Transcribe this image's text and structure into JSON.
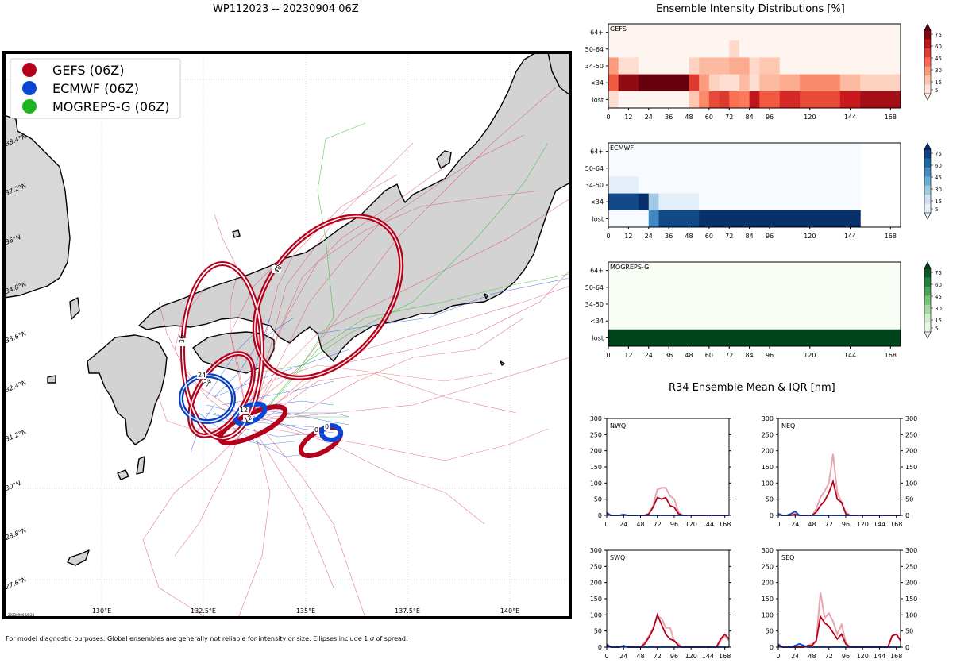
{
  "titles": {
    "map": "WP112023 -- 20230904 06Z",
    "intensity": "Ensemble Intensity Distributions [%]",
    "r34": "R34 Ensemble Mean & IQR [nm]"
  },
  "footnote_before": "For model diagnostic purposes. Global ensembles are generally not reliable for intensity or size. Ellipses include 1 ",
  "footnote_sigma": "σ",
  "footnote_after": " of spread.",
  "stamp": "20230906 16:24",
  "colors": {
    "gefs": "#b5001c",
    "ecmwf": "#0a46d6",
    "mogreps": "#1db522",
    "land": "#d3d3d3",
    "coast": "#000000"
  },
  "map": {
    "legend": [
      {
        "label": "GEFS (06Z)",
        "color": "#b5001c"
      },
      {
        "label": "ECMWF (06Z)",
        "color": "#0a46d6"
      },
      {
        "label": "MOGREPS-G (06Z)",
        "color": "#1db522"
      }
    ],
    "lon_labels": [
      "130°E",
      "132.5°E",
      "135°E",
      "137.5°E",
      "140°E"
    ],
    "lat_labels": [
      "38.4°N",
      "37.2°N",
      "36°N",
      "34.8°N",
      "33.6°N",
      "32.4°N",
      "31.2°N",
      "30°N",
      "28.8°N",
      "27.6°N"
    ],
    "ellipse_labels": {
      "gefs_36": "36",
      "gefs_48": "48",
      "gefs_24": "24",
      "gefs_12": "12",
      "gefs_0": "0",
      "ecmwf_24": "24",
      "ecmwf_12": "12",
      "ecmwf_0": "0"
    }
  },
  "chart_data": [
    {
      "type": "heatmap",
      "title": "GEFS",
      "colormap": "Reds",
      "x_ticks": [
        0,
        12,
        24,
        36,
        48,
        60,
        72,
        84,
        96,
        120,
        144,
        168
      ],
      "y_labels": [
        "64+",
        "50-64",
        "34-50",
        "<34",
        "lost"
      ],
      "colorbar_ticks": [
        5,
        15,
        30,
        45,
        60,
        75
      ],
      "columns": [
        {
          "start": 0,
          "end": 6,
          "values": [
            0,
            0,
            35,
            55,
            10
          ]
        },
        {
          "start": 6,
          "end": 18,
          "values": [
            0,
            0,
            10,
            90,
            0
          ]
        },
        {
          "start": 18,
          "end": 48,
          "values": [
            0,
            0,
            0,
            100,
            0
          ]
        },
        {
          "start": 48,
          "end": 54,
          "values": [
            0,
            0,
            15,
            65,
            20
          ]
        },
        {
          "start": 54,
          "end": 60,
          "values": [
            0,
            0,
            25,
            35,
            40
          ]
        },
        {
          "start": 60,
          "end": 66,
          "values": [
            0,
            0,
            25,
            15,
            60
          ]
        },
        {
          "start": 66,
          "end": 72,
          "values": [
            0,
            0,
            25,
            10,
            65
          ]
        },
        {
          "start": 72,
          "end": 78,
          "values": [
            0,
            12,
            30,
            10,
            48
          ]
        },
        {
          "start": 78,
          "end": 84,
          "values": [
            0,
            0,
            30,
            25,
            45
          ]
        },
        {
          "start": 84,
          "end": 90,
          "values": [
            0,
            0,
            12,
            10,
            78
          ]
        },
        {
          "start": 90,
          "end": 102,
          "values": [
            0,
            0,
            20,
            25,
            55
          ]
        },
        {
          "start": 102,
          "end": 114,
          "values": [
            0,
            0,
            0,
            30,
            70
          ]
        },
        {
          "start": 114,
          "end": 138,
          "values": [
            0,
            0,
            0,
            40,
            60
          ]
        },
        {
          "start": 138,
          "end": 150,
          "values": [
            0,
            0,
            0,
            25,
            75
          ]
        },
        {
          "start": 150,
          "end": 174,
          "values": [
            0,
            0,
            0,
            15,
            85
          ]
        }
      ]
    },
    {
      "type": "heatmap",
      "title": "ECMWF",
      "colormap": "Blues",
      "x_ticks": [
        0,
        12,
        24,
        36,
        48,
        60,
        72,
        84,
        96,
        120,
        144,
        168
      ],
      "y_labels": [
        "64+",
        "50-64",
        "34-50",
        "<34",
        "lost"
      ],
      "colorbar_ticks": [
        5,
        15,
        30,
        45,
        60,
        75
      ],
      "columns": [
        {
          "start": 0,
          "end": 18,
          "values": [
            0,
            0,
            10,
            90,
            0
          ]
        },
        {
          "start": 18,
          "end": 24,
          "values": [
            0,
            0,
            0,
            100,
            0
          ]
        },
        {
          "start": 24,
          "end": 30,
          "values": [
            0,
            0,
            0,
            35,
            65
          ]
        },
        {
          "start": 30,
          "end": 54,
          "values": [
            0,
            0,
            0,
            10,
            90
          ]
        },
        {
          "start": 54,
          "end": 150,
          "values": [
            0,
            0,
            0,
            0,
            100
          ]
        }
      ]
    },
    {
      "type": "heatmap",
      "title": "MOGREPS-G",
      "colormap": "Greens",
      "x_ticks": [
        0,
        12,
        24,
        36,
        48,
        60,
        72,
        84,
        96,
        120,
        144,
        168
      ],
      "y_labels": [
        "64+",
        "50-64",
        "34-50",
        "<34",
        "lost"
      ],
      "colorbar_ticks": [
        5,
        15,
        30,
        45,
        60,
        75
      ],
      "columns": [
        {
          "start": 0,
          "end": 174,
          "values": [
            0,
            0,
            0,
            0,
            100
          ]
        }
      ]
    },
    {
      "type": "line",
      "title": "NWQ",
      "x": [
        0,
        6,
        12,
        18,
        24,
        30,
        36,
        42,
        48,
        54,
        60,
        66,
        72,
        78,
        84,
        90,
        96,
        102,
        108,
        114,
        120,
        126,
        132,
        138,
        144,
        150,
        156,
        162,
        168,
        174
      ],
      "ylim": [
        0,
        300
      ],
      "y_ticks": [
        0,
        50,
        100,
        150,
        200,
        250,
        300
      ],
      "x_ticks": [
        0,
        24,
        48,
        72,
        96,
        120,
        144,
        168
      ],
      "series": [
        {
          "name": "GEFS IQR",
          "color": "#e8a4b0",
          "values": [
            5,
            0,
            0,
            0,
            0,
            0,
            0,
            0,
            0,
            0,
            5,
            30,
            80,
            85,
            85,
            60,
            50,
            10,
            0,
            0,
            0,
            0,
            0,
            0,
            0,
            0,
            0,
            0,
            0,
            0
          ]
        },
        {
          "name": "GEFS mean",
          "color": "#b5001c",
          "values": [
            3,
            0,
            0,
            0,
            2,
            0,
            0,
            0,
            0,
            0,
            5,
            25,
            55,
            50,
            55,
            30,
            25,
            5,
            0,
            0,
            0,
            0,
            0,
            0,
            0,
            0,
            0,
            0,
            0,
            0
          ]
        },
        {
          "name": "ECMWF mean",
          "color": "#0a46d6",
          "values": [
            8,
            0,
            0,
            0,
            3,
            0,
            0,
            0,
            0,
            0,
            0,
            0,
            0,
            0,
            0,
            0,
            0,
            0,
            0,
            0,
            0,
            0,
            0,
            0,
            0,
            0,
            0,
            0,
            0,
            0
          ]
        }
      ]
    },
    {
      "type": "line",
      "title": "NEQ",
      "x": [
        0,
        6,
        12,
        18,
        24,
        30,
        36,
        42,
        48,
        54,
        60,
        66,
        72,
        78,
        84,
        90,
        96,
        102,
        108,
        114,
        120,
        126,
        132,
        138,
        144,
        150,
        156,
        162,
        168,
        174
      ],
      "ylim": [
        0,
        300
      ],
      "y_ticks": [
        0,
        50,
        100,
        150,
        200,
        250,
        300
      ],
      "x_ticks": [
        0,
        24,
        48,
        72,
        96,
        120,
        144,
        168
      ],
      "series": [
        {
          "name": "GEFS IQR",
          "color": "#e8a4b0",
          "values": [
            5,
            0,
            0,
            0,
            5,
            0,
            0,
            0,
            0,
            20,
            55,
            75,
            100,
            190,
            70,
            40,
            10,
            0,
            0,
            0,
            0,
            0,
            0,
            0,
            0,
            0,
            0,
            0,
            0,
            0
          ]
        },
        {
          "name": "GEFS mean",
          "color": "#b5001c",
          "values": [
            3,
            0,
            0,
            0,
            3,
            0,
            0,
            0,
            0,
            10,
            30,
            45,
            70,
            105,
            50,
            40,
            5,
            0,
            0,
            0,
            0,
            0,
            0,
            0,
            0,
            0,
            0,
            0,
            0,
            0
          ]
        },
        {
          "name": "ECMWF mean",
          "color": "#0a46d6",
          "values": [
            5,
            0,
            0,
            5,
            12,
            0,
            0,
            0,
            0,
            0,
            0,
            0,
            0,
            0,
            0,
            0,
            0,
            0,
            0,
            0,
            0,
            0,
            0,
            0,
            0,
            0,
            0,
            0,
            0,
            0
          ]
        }
      ]
    },
    {
      "type": "line",
      "title": "SWQ",
      "x": [
        0,
        6,
        12,
        18,
        24,
        30,
        36,
        42,
        48,
        54,
        60,
        66,
        72,
        78,
        84,
        90,
        96,
        102,
        108,
        114,
        120,
        126,
        132,
        138,
        144,
        150,
        156,
        162,
        168,
        174
      ],
      "ylim": [
        0,
        300
      ],
      "y_ticks": [
        0,
        50,
        100,
        150,
        200,
        250,
        300
      ],
      "x_ticks": [
        0,
        24,
        48,
        72,
        96,
        120,
        144,
        168
      ],
      "series": [
        {
          "name": "GEFS IQR",
          "color": "#e8a4b0",
          "values": [
            10,
            0,
            0,
            0,
            5,
            0,
            0,
            0,
            0,
            15,
            35,
            60,
            95,
            90,
            60,
            60,
            20,
            10,
            0,
            0,
            0,
            0,
            0,
            0,
            0,
            0,
            0,
            20,
            35,
            20
          ]
        },
        {
          "name": "GEFS mean",
          "color": "#b5001c",
          "values": [
            8,
            0,
            0,
            0,
            3,
            0,
            0,
            0,
            0,
            10,
            30,
            55,
            100,
            70,
            40,
            25,
            20,
            5,
            0,
            0,
            0,
            0,
            0,
            0,
            0,
            0,
            0,
            25,
            40,
            25
          ]
        },
        {
          "name": "ECMWF mean",
          "color": "#0a46d6",
          "values": [
            5,
            0,
            0,
            0,
            5,
            0,
            0,
            0,
            0,
            0,
            0,
            0,
            0,
            0,
            0,
            0,
            0,
            0,
            0,
            0,
            0,
            0,
            0,
            0,
            0,
            0,
            0,
            0,
            0,
            0
          ]
        }
      ]
    },
    {
      "type": "line",
      "title": "SEQ",
      "x": [
        0,
        6,
        12,
        18,
        24,
        30,
        36,
        42,
        48,
        54,
        60,
        66,
        72,
        78,
        84,
        90,
        96,
        102,
        108,
        114,
        120,
        126,
        132,
        138,
        144,
        150,
        156,
        162,
        168,
        174
      ],
      "ylim": [
        0,
        300
      ],
      "y_ticks": [
        0,
        50,
        100,
        150,
        200,
        250,
        300
      ],
      "x_ticks": [
        0,
        24,
        48,
        72,
        96,
        120,
        144,
        168
      ],
      "series": [
        {
          "name": "GEFS IQR",
          "color": "#e8a4b0",
          "values": [
            10,
            0,
            0,
            0,
            0,
            0,
            0,
            5,
            10,
            20,
            170,
            90,
            105,
            80,
            40,
            70,
            15,
            0,
            0,
            0,
            0,
            0,
            0,
            0,
            0,
            0,
            0,
            35,
            40,
            20
          ]
        },
        {
          "name": "GEFS mean",
          "color": "#b5001c",
          "values": [
            8,
            0,
            0,
            0,
            0,
            0,
            0,
            5,
            5,
            20,
            95,
            75,
            65,
            45,
            25,
            40,
            10,
            0,
            0,
            0,
            0,
            0,
            0,
            0,
            0,
            0,
            0,
            35,
            40,
            20
          ]
        },
        {
          "name": "ECMWF mean",
          "color": "#0a46d6",
          "values": [
            5,
            0,
            0,
            0,
            5,
            10,
            5,
            0,
            0,
            0,
            0,
            0,
            0,
            0,
            0,
            0,
            0,
            0,
            0,
            0,
            0,
            0,
            0,
            0,
            0,
            0,
            0,
            0,
            0,
            0
          ]
        }
      ]
    }
  ]
}
